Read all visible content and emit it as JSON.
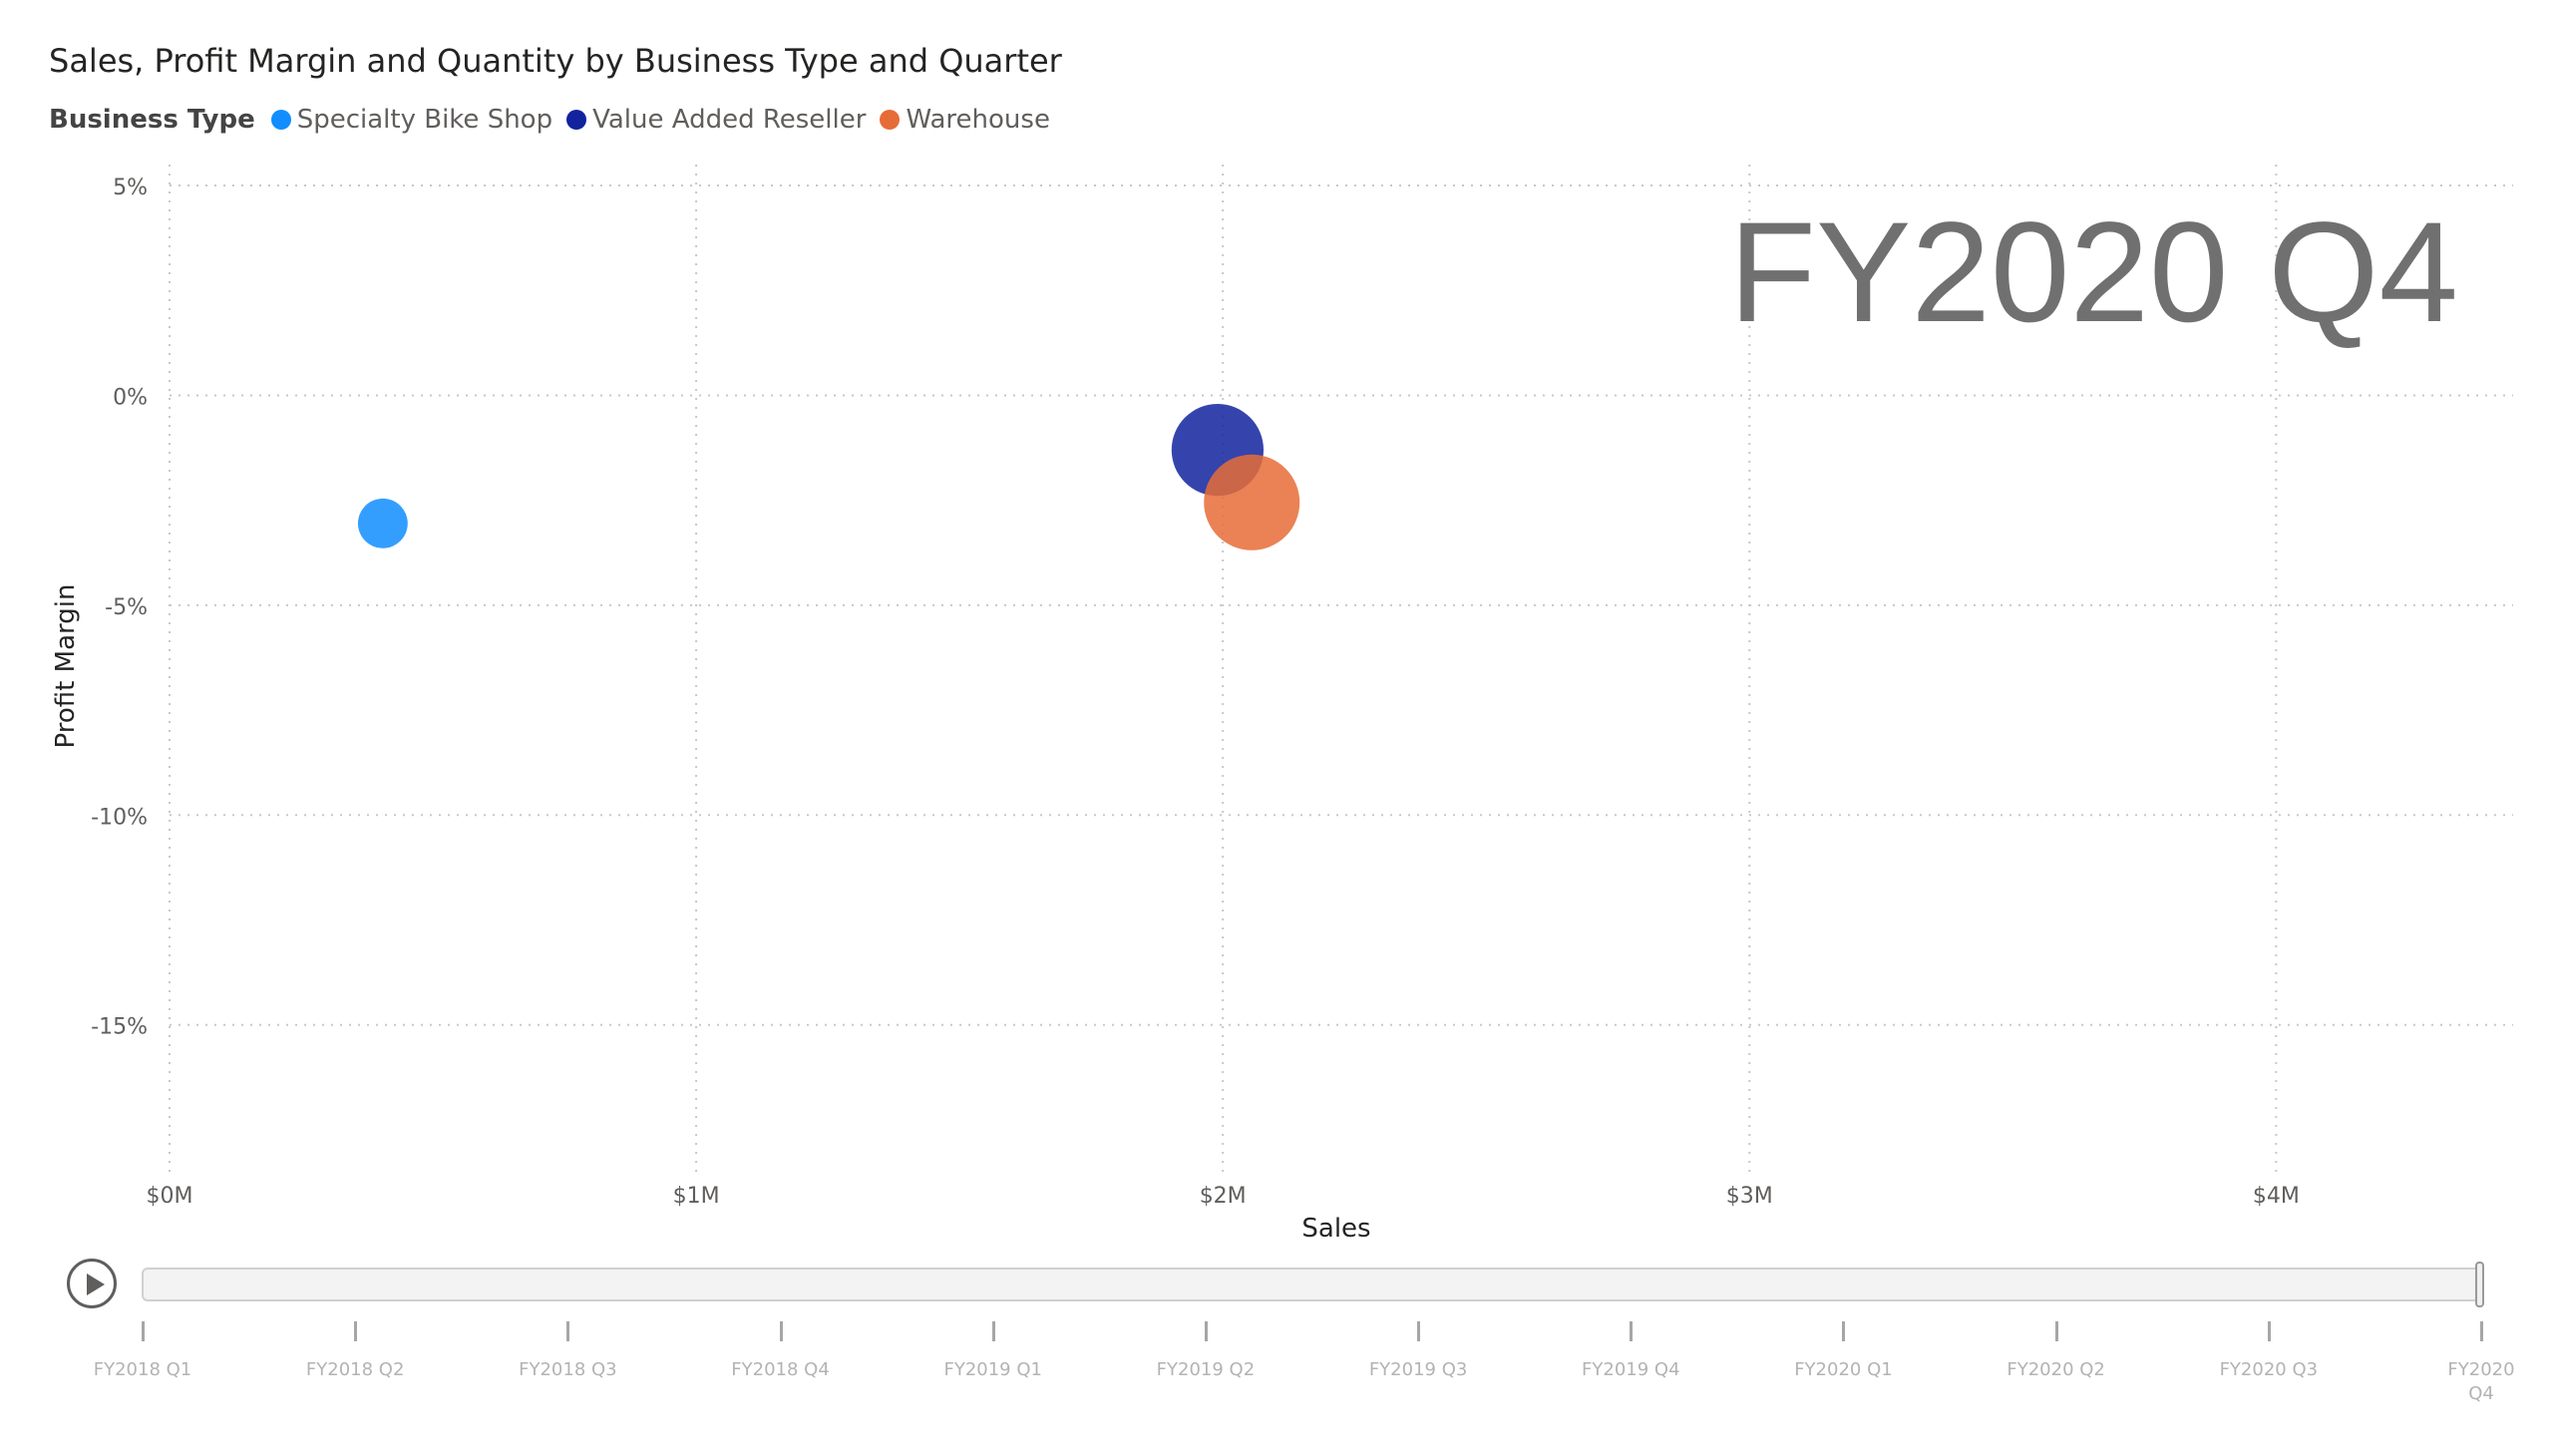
{
  "chart_data": {
    "type": "scatter",
    "title": "Sales, Profit Margin and Quantity by Business Type and Quarter",
    "xlabel": "Sales",
    "ylabel": "Profit Margin",
    "xlim": [
      0,
      4450000
    ],
    "ylim": [
      -18.5,
      5.5
    ],
    "x_ticks": [
      {
        "value": 0,
        "label": "$0M"
      },
      {
        "value": 1000000,
        "label": "$1M"
      },
      {
        "value": 2000000,
        "label": "$2M"
      },
      {
        "value": 3000000,
        "label": "$3M"
      },
      {
        "value": 4000000,
        "label": "$4M"
      }
    ],
    "y_ticks": [
      {
        "value": 5,
        "label": "5%"
      },
      {
        "value": 0,
        "label": "0%"
      },
      {
        "value": -5,
        "label": "-5%"
      },
      {
        "value": -10,
        "label": "-10%"
      },
      {
        "value": -15,
        "label": "-15%"
      }
    ],
    "grid": true,
    "legend_title": "Business Type",
    "legend_position": "top-left",
    "play_axis_current": "FY2020 Q4",
    "series": [
      {
        "name": "Specialty Bike Shop",
        "color": "#118dff",
        "points": [
          {
            "x": 405000,
            "y": -3.05,
            "size": 14
          }
        ]
      },
      {
        "name": "Value Added Reseller",
        "color": "#12239e",
        "points": [
          {
            "x": 1990000,
            "y": -1.3,
            "size": 48
          }
        ]
      },
      {
        "name": "Warehouse",
        "color": "#e66c37",
        "points": [
          {
            "x": 2055000,
            "y": -2.55,
            "size": 52
          }
        ]
      }
    ]
  },
  "play_axis": {
    "current_index": 11,
    "labels": [
      "FY2018 Q1",
      "FY2018 Q2",
      "FY2018 Q3",
      "FY2018 Q4",
      "FY2019 Q1",
      "FY2019 Q2",
      "FY2019 Q3",
      "FY2019 Q4",
      "FY2020 Q1",
      "FY2020 Q2",
      "FY2020 Q3",
      "FY2020 Q4"
    ]
  }
}
